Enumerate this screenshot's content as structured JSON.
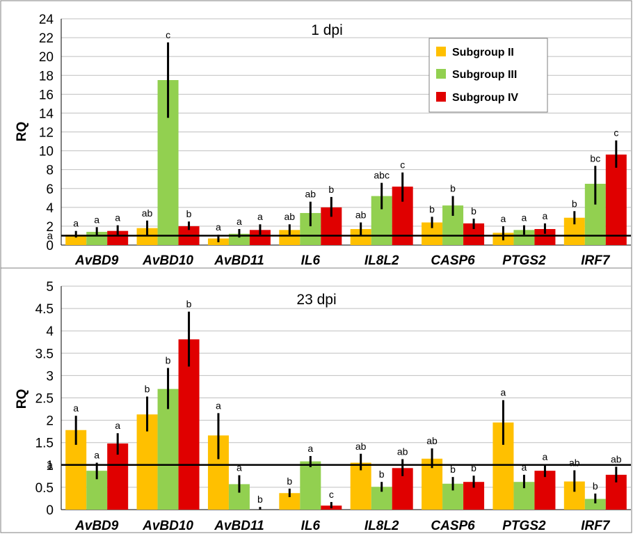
{
  "colors": {
    "Subgroup II": "#FFC000",
    "Subgroup III": "#92D050",
    "Subgroup IV": "#E00000",
    "grid": "#BFBFBF",
    "axis": "#000000"
  },
  "chart_data": [
    {
      "type": "bar",
      "title": "1 dpi",
      "ylabel": "RQ",
      "xlabel": "",
      "categories": [
        "AvBD9",
        "AvBD10",
        "AvBD11",
        "IL6",
        "IL8L2",
        "CASP6",
        "PTGS2",
        "IRF7"
      ],
      "ylim": [
        0,
        24
      ],
      "yticks": [
        0,
        2,
        4,
        6,
        8,
        10,
        12,
        14,
        16,
        18,
        20,
        22,
        24
      ],
      "grid": true,
      "legend_position": "top-right",
      "reference_line": {
        "value": 1,
        "label": "a"
      },
      "series": [
        {
          "name": "Subgroup II",
          "values": [
            1.1,
            1.8,
            0.7,
            1.6,
            1.7,
            2.4,
            1.3,
            2.9
          ],
          "err_low": [
            0.8,
            1.0,
            0.3,
            1.1,
            1.0,
            1.8,
            0.5,
            2.2
          ],
          "err_high": [
            1.5,
            2.6,
            1.1,
            2.2,
            2.4,
            3.0,
            2.0,
            3.6
          ],
          "labels": [
            "a",
            "ab",
            "a",
            "ab",
            "ab",
            "b",
            "a",
            "b"
          ]
        },
        {
          "name": "Subgroup III",
          "values": [
            1.4,
            17.5,
            1.2,
            3.4,
            5.2,
            4.2,
            1.6,
            6.5
          ],
          "err_low": [
            1.0,
            13.5,
            0.8,
            2.0,
            3.8,
            3.1,
            1.1,
            4.3
          ],
          "err_high": [
            1.9,
            21.5,
            1.7,
            4.6,
            6.6,
            5.2,
            2.1,
            8.4
          ],
          "labels": [
            "a",
            "c",
            "a",
            "ab",
            "abc",
            "b",
            "a",
            "bc"
          ]
        },
        {
          "name": "Subgroup IV",
          "values": [
            1.5,
            2.0,
            1.6,
            4.0,
            6.2,
            2.3,
            1.7,
            9.6
          ],
          "err_low": [
            1.0,
            1.6,
            1.1,
            3.0,
            4.6,
            1.7,
            1.2,
            8.2
          ],
          "err_high": [
            2.1,
            2.5,
            2.2,
            5.1,
            7.7,
            2.8,
            2.3,
            11.1
          ],
          "labels": [
            "a",
            "b",
            "a",
            "b",
            "c",
            "b",
            "a",
            "c"
          ]
        }
      ]
    },
    {
      "type": "bar",
      "title": "23 dpi",
      "ylabel": "RQ",
      "xlabel": "",
      "categories": [
        "AvBD9",
        "AvBD10",
        "AvBD11",
        "IL6",
        "IL8L2",
        "CASP6",
        "PTGS2",
        "IRF7"
      ],
      "ylim": [
        0,
        5
      ],
      "yticks": [
        0,
        0.5,
        1,
        1.5,
        2,
        2.5,
        3,
        3.5,
        4,
        4.5,
        5
      ],
      "grid": true,
      "legend_position": "none",
      "reference_line": {
        "value": 1,
        "label": "a"
      },
      "series": [
        {
          "name": "Subgroup II",
          "values": [
            1.78,
            2.13,
            1.66,
            0.37,
            1.05,
            1.14,
            1.95,
            0.63
          ],
          "err_low": [
            1.45,
            1.75,
            1.13,
            0.28,
            0.88,
            0.93,
            1.45,
            0.4
          ],
          "err_high": [
            2.1,
            2.53,
            2.16,
            0.47,
            1.25,
            1.37,
            2.45,
            0.88
          ],
          "labels": [
            "a",
            "b",
            "a",
            "b",
            "ab",
            "ab",
            "a",
            "ab"
          ]
        },
        {
          "name": "Subgroup III",
          "values": [
            0.87,
            2.7,
            0.57,
            1.08,
            0.51,
            0.58,
            0.62,
            0.24
          ],
          "err_low": [
            0.68,
            2.25,
            0.38,
            0.95,
            0.4,
            0.43,
            0.48,
            0.14
          ],
          "err_high": [
            1.05,
            3.17,
            0.77,
            1.2,
            0.62,
            0.73,
            0.78,
            0.36
          ],
          "labels": [
            "a",
            "b",
            "a",
            "a",
            "b",
            "b",
            "a",
            "b"
          ]
        },
        {
          "name": "Subgroup IV",
          "values": [
            1.48,
            3.81,
            0.0,
            0.09,
            0.93,
            0.62,
            0.87,
            0.78
          ],
          "err_low": [
            1.23,
            3.2,
            0.0,
            0.03,
            0.75,
            0.49,
            0.73,
            0.61
          ],
          "err_high": [
            1.71,
            4.43,
            0.06,
            0.17,
            1.13,
            0.76,
            1.01,
            0.96
          ],
          "labels": [
            "a",
            "b",
            "b",
            "c",
            "ab",
            "b",
            "a",
            "ab"
          ]
        }
      ]
    }
  ]
}
